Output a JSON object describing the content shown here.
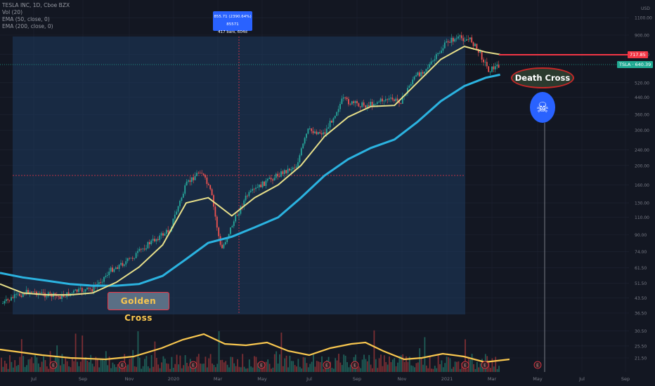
{
  "legend": {
    "symbol": "TESLA INC, 1D, Cboe BZX",
    "vol": "Vol (20)",
    "ema50": "EMA (50, close, 0)",
    "ema200": "EMA (200, close, 0)"
  },
  "measure": {
    "line1": "855.71 (2390.64%) 85571",
    "line2": "417 bars, 604d"
  },
  "price_tags": {
    "red": "717.85",
    "teal": "TSLA · 640.39"
  },
  "annotations": {
    "golden_cross": "Golden Cross",
    "death_cross": "Death Cross",
    "skull_icon": "skull-crossbones-icon"
  },
  "colors": {
    "background": "#131722",
    "ema50": "#e8e08a",
    "ema200": "#2bb3e0",
    "volume_ma": "#f9c74f",
    "up": "#26a69a",
    "down": "#ef5350",
    "selection": "#1e3a5f",
    "red_line": "#f23645"
  },
  "chart_data": {
    "type": "candlestick",
    "scale": "log",
    "y_axis_unit": "USD",
    "y_ticks": [
      1100,
      900,
      720,
      520,
      440,
      360,
      300,
      240,
      200,
      160,
      130,
      110,
      90,
      74,
      61.5,
      51.5,
      43.5,
      36.5,
      30.5,
      25.5,
      21.5
    ],
    "x_ticks": [
      "Jul",
      "Sep",
      "Nov",
      "2020",
      "Mar",
      "May",
      "Jul",
      "Sep",
      "Nov",
      "2021",
      "Mar",
      "May",
      "Jul",
      "Sep"
    ],
    "ema50": [
      [
        "2019-06-01",
        51
      ],
      [
        "2019-07-01",
        46
      ],
      [
        "2019-08-01",
        45
      ],
      [
        "2019-09-01",
        45
      ],
      [
        "2019-10-01",
        46
      ],
      [
        "2019-11-01",
        52
      ],
      [
        "2019-12-01",
        62
      ],
      [
        "2020-01-01",
        80
      ],
      [
        "2020-02-01",
        130
      ],
      [
        "2020-03-01",
        138
      ],
      [
        "2020-04-01",
        112
      ],
      [
        "2020-05-01",
        138
      ],
      [
        "2020-06-01",
        160
      ],
      [
        "2020-07-01",
        200
      ],
      [
        "2020-08-01",
        280
      ],
      [
        "2020-09-01",
        350
      ],
      [
        "2020-10-01",
        395
      ],
      [
        "2020-11-01",
        400
      ],
      [
        "2020-12-01",
        520
      ],
      [
        "2021-01-01",
        680
      ],
      [
        "2021-02-01",
        790
      ],
      [
        "2021-03-01",
        740
      ],
      [
        "2021-03-20",
        720
      ]
    ],
    "ema200": [
      [
        "2019-06-01",
        58
      ],
      [
        "2019-07-01",
        55
      ],
      [
        "2019-08-01",
        53
      ],
      [
        "2019-09-01",
        51
      ],
      [
        "2019-10-01",
        50
      ],
      [
        "2019-11-01",
        50
      ],
      [
        "2019-12-01",
        51
      ],
      [
        "2020-01-01",
        56
      ],
      [
        "2020-02-01",
        68
      ],
      [
        "2020-03-01",
        82
      ],
      [
        "2020-04-01",
        88
      ],
      [
        "2020-05-01",
        98
      ],
      [
        "2020-06-01",
        110
      ],
      [
        "2020-07-01",
        138
      ],
      [
        "2020-08-01",
        178
      ],
      [
        "2020-09-01",
        215
      ],
      [
        "2020-10-01",
        245
      ],
      [
        "2020-11-01",
        270
      ],
      [
        "2020-12-01",
        330
      ],
      [
        "2021-01-01",
        420
      ],
      [
        "2021-02-01",
        500
      ],
      [
        "2021-03-01",
        550
      ],
      [
        "2021-03-20",
        570
      ]
    ],
    "close": [
      [
        "2019-06-01",
        40
      ],
      [
        "2019-06-20",
        44
      ],
      [
        "2019-07-10",
        47
      ],
      [
        "2019-08-01",
        45
      ],
      [
        "2019-08-20",
        44
      ],
      [
        "2019-09-10",
        47
      ],
      [
        "2019-10-01",
        48
      ],
      [
        "2019-10-25",
        60
      ],
      [
        "2019-11-20",
        68
      ],
      [
        "2019-12-15",
        82
      ],
      [
        "2020-01-10",
        95
      ],
      [
        "2020-02-01",
        160
      ],
      [
        "2020-02-20",
        190
      ],
      [
        "2020-03-05",
        145
      ],
      [
        "2020-03-18",
        75
      ],
      [
        "2020-04-01",
        100
      ],
      [
        "2020-04-20",
        140
      ],
      [
        "2020-05-10",
        160
      ],
      [
        "2020-06-01",
        180
      ],
      [
        "2020-06-25",
        200
      ],
      [
        "2020-07-10",
        300
      ],
      [
        "2020-08-01",
        290
      ],
      [
        "2020-08-25",
        430
      ],
      [
        "2020-09-05",
        410
      ],
      [
        "2020-09-25",
        400
      ],
      [
        "2020-10-20",
        430
      ],
      [
        "2020-11-10",
        420
      ],
      [
        "2020-11-25",
        540
      ],
      [
        "2020-12-20",
        650
      ],
      [
        "2021-01-10",
        840
      ],
      [
        "2021-01-26",
        870
      ],
      [
        "2021-02-10",
        850
      ],
      [
        "2021-02-25",
        690
      ],
      [
        "2021-03-05",
        600
      ],
      [
        "2021-03-20",
        640
      ]
    ],
    "horizontal_line": 717.85,
    "last_price": 640.39
  }
}
